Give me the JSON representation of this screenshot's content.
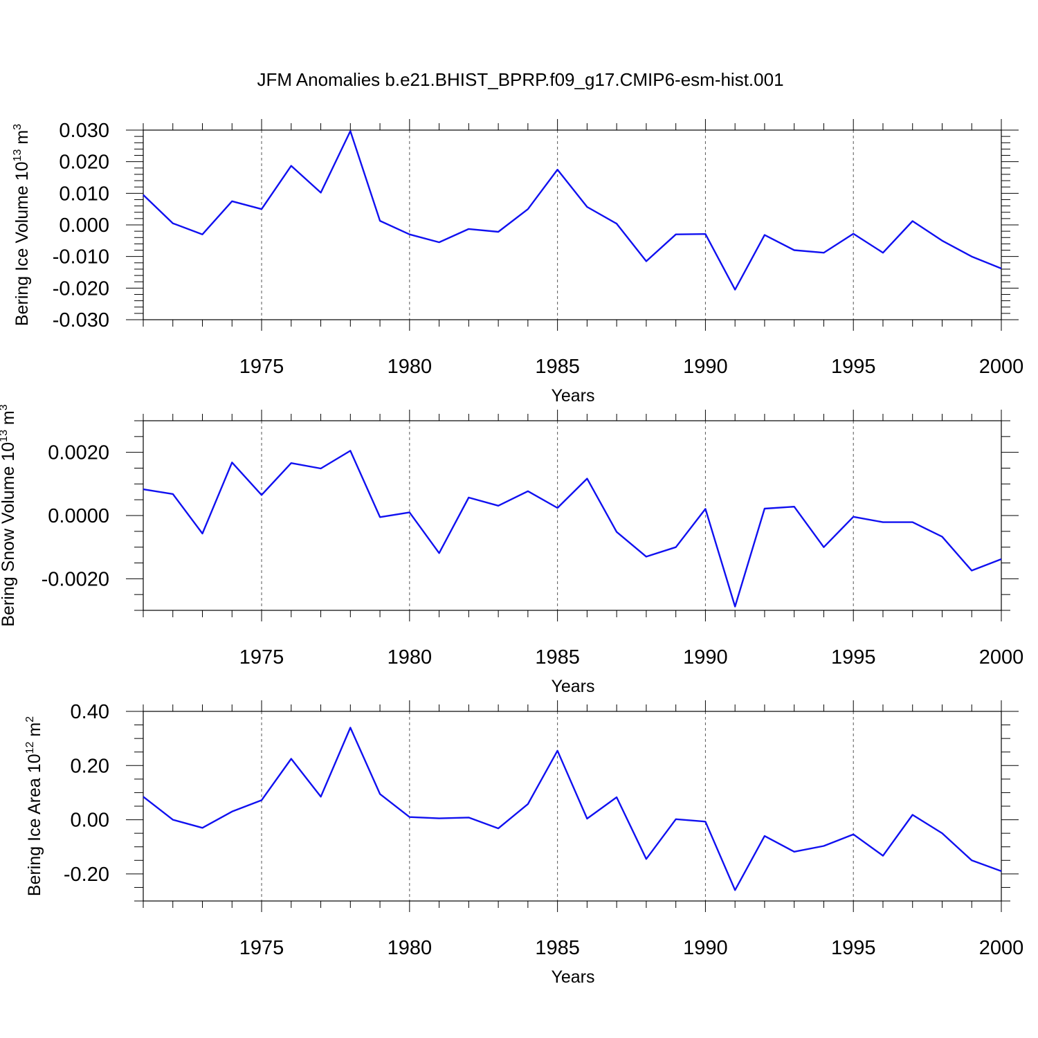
{
  "chart_data": {
    "title": "JFM Anomalies b.e21.BHIST_BPRP.f09_g17.CMIP6-esm-hist.001",
    "x": [
      1971,
      1972,
      1973,
      1974,
      1975,
      1976,
      1977,
      1978,
      1979,
      1980,
      1981,
      1982,
      1983,
      1984,
      1985,
      1986,
      1987,
      1988,
      1989,
      1990,
      1991,
      1992,
      1993,
      1994,
      1995,
      1996,
      1997,
      1998,
      1999,
      2000
    ],
    "xlim": [
      1971,
      2000
    ],
    "xticks": [
      1975,
      1980,
      1985,
      1990,
      1995,
      2000
    ],
    "xtick_labels": [
      "1975",
      "1980",
      "1985",
      "1990",
      "1995",
      "2000"
    ],
    "line_color": "#1010f0",
    "panels": [
      {
        "type": "line",
        "xlabel": "Years",
        "ylabel": "Bering Ice Volume 10",
        "ylabel_exp": "13",
        "ylabel_unit": "m",
        "ylabel_unit_exp": "3",
        "ylim": [
          -0.03,
          0.03
        ],
        "yticks": [
          -0.03,
          -0.02,
          -0.01,
          0.0,
          0.01,
          0.02,
          0.03
        ],
        "ytick_labels": [
          "-0.030",
          "-0.020",
          "-0.010",
          "0.000",
          "0.010",
          "0.020",
          "0.030"
        ],
        "y_minor_step": 0.002,
        "values": [
          0.0095,
          0.0005,
          -0.003,
          0.0075,
          0.005,
          0.0187,
          0.0102,
          0.0297,
          0.0013,
          -0.003,
          -0.0055,
          -0.0013,
          -0.0022,
          0.005,
          0.0175,
          0.0057,
          0.0004,
          -0.0115,
          -0.003,
          -0.0029,
          -0.0205,
          -0.0032,
          -0.008,
          -0.0088,
          -0.0028,
          -0.0088,
          0.0012,
          -0.005,
          -0.01,
          -0.0138
        ]
      },
      {
        "type": "line",
        "xlabel": "Years",
        "ylabel": "Bering Snow Volume 10",
        "ylabel_exp": "13",
        "ylabel_unit": "m",
        "ylabel_unit_exp": "3",
        "ylim": [
          -0.003,
          0.003
        ],
        "yticks": [
          -0.002,
          0.0,
          0.002
        ],
        "ytick_labels": [
          "-0.0020",
          "0.0000",
          "0.0020"
        ],
        "y_minor_step": 0.0005,
        "values": [
          0.00083,
          0.00068,
          -0.00057,
          0.00168,
          0.00065,
          0.00166,
          0.00149,
          0.00205,
          -5e-05,
          0.0001,
          -0.00119,
          0.00057,
          0.00031,
          0.00077,
          0.00024,
          0.00117,
          -0.00052,
          -0.0013,
          -0.001,
          0.00021,
          -0.00288,
          0.00022,
          0.00028,
          -0.001,
          -4e-05,
          -0.00021,
          -0.00021,
          -0.00067,
          -0.00174,
          -0.00138
        ]
      },
      {
        "type": "line",
        "xlabel": "Years",
        "ylabel": "Bering Ice Area 10",
        "ylabel_exp": "12",
        "ylabel_unit": "m",
        "ylabel_unit_exp": "2",
        "ylim": [
          -0.3,
          0.4
        ],
        "yticks": [
          -0.2,
          0.0,
          0.2,
          0.4
        ],
        "ytick_labels": [
          "-0.20",
          "0.00",
          "0.20",
          "0.40"
        ],
        "y_minor_step": 0.05,
        "values": [
          0.085,
          0.0,
          -0.03,
          0.03,
          0.072,
          0.225,
          0.085,
          0.34,
          0.095,
          0.01,
          0.005,
          0.008,
          -0.032,
          0.058,
          0.255,
          0.004,
          0.083,
          -0.145,
          0.002,
          -0.007,
          -0.26,
          -0.06,
          -0.118,
          -0.097,
          -0.054,
          -0.133,
          0.018,
          -0.05,
          -0.15,
          -0.19
        ]
      }
    ]
  }
}
